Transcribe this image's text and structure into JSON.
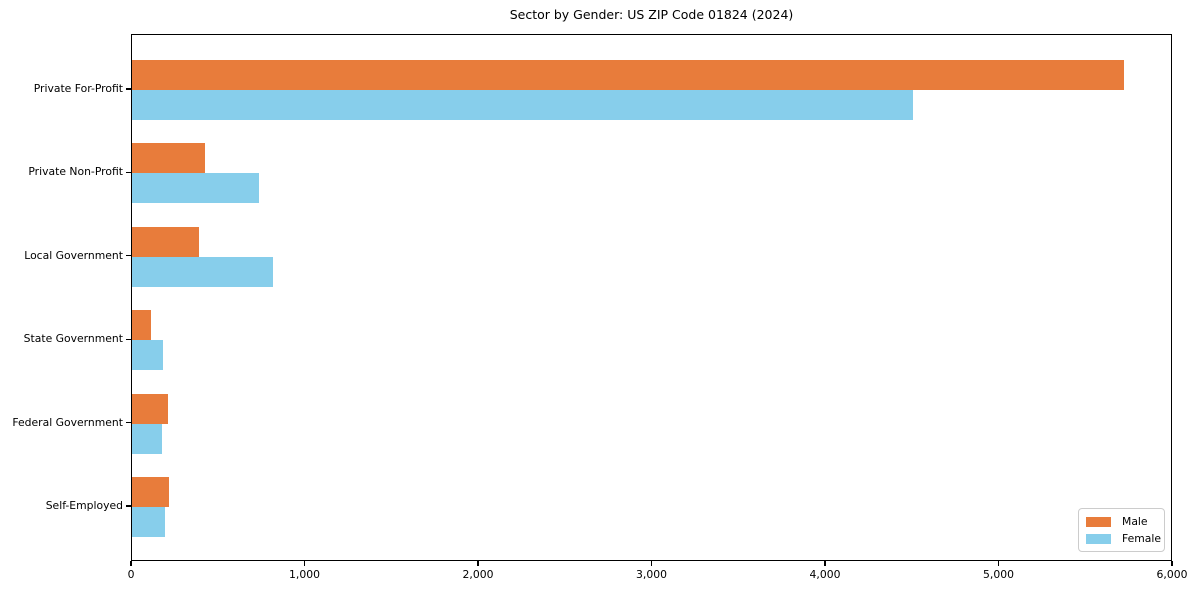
{
  "title": "Sector by Gender: US ZIP Code 01824 (2024)",
  "colors": {
    "male": "#e87c3b",
    "female": "#87ceeb",
    "axis": "#000000",
    "legend_border": "#cccccc",
    "background": "#ffffff"
  },
  "legend": {
    "position": "lower right",
    "items": [
      {
        "label": "Male",
        "color_key": "male"
      },
      {
        "label": "Female",
        "color_key": "female"
      }
    ]
  },
  "chart_data": {
    "type": "bar",
    "orientation": "horizontal",
    "title": "Sector by Gender: US ZIP Code 01824 (2024)",
    "xlabel": "",
    "ylabel": "",
    "categories": [
      "Private For-Profit",
      "Private Non-Profit",
      "Local Government",
      "State Government",
      "Federal Government",
      "Self-Employed"
    ],
    "series": [
      {
        "name": "Male",
        "color": "#e87c3b",
        "values": [
          5720,
          420,
          385,
          110,
          205,
          215
        ]
      },
      {
        "name": "Female",
        "color": "#87ceeb",
        "values": [
          4500,
          730,
          815,
          180,
          175,
          190
        ]
      }
    ],
    "xlim": [
      0,
      6000
    ],
    "xticks": [
      0,
      1000,
      2000,
      3000,
      4000,
      5000,
      6000
    ],
    "xtick_labels": [
      "0",
      "1,000",
      "2,000",
      "3,000",
      "4,000",
      "5,000",
      "6,000"
    ],
    "grid": false,
    "legend_position": "lower right"
  }
}
